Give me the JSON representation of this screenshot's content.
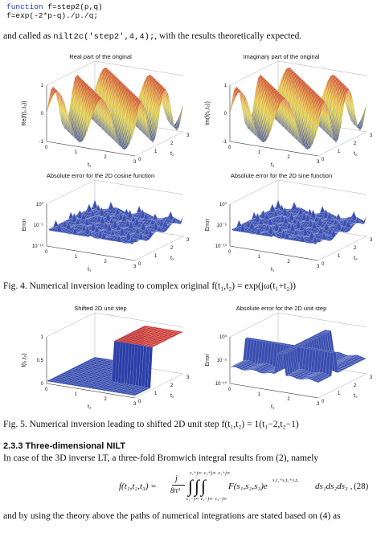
{
  "code": {
    "line1_keyword": "function",
    "line1_rest": " f=step2(p,q)",
    "line2": "f=exp(-2*p-q)./p./q;"
  },
  "intro": {
    "before": "and called as ",
    "call": "nilt2c('step2',4,4);",
    "after": ", with the results theoretically expected."
  },
  "fig4": {
    "plot_a": {
      "title": "Real part of the original",
      "zlabel": "Re(f(t₁,t₂))",
      "xlabel": "t₁",
      "ylabel": "t₂",
      "xticks": [
        "0",
        "1",
        "2",
        "3"
      ],
      "yticks": [
        "0",
        "1",
        "2",
        "3"
      ],
      "zticks": [
        "1",
        "0",
        "-1"
      ]
    },
    "plot_b": {
      "title": "Imaginary part of the original",
      "zlabel": "Im(f(t₁,t₂))",
      "xlabel": "t₁",
      "ylabel": "t₂",
      "xticks": [
        "0",
        "1",
        "2",
        "3"
      ],
      "yticks": [
        "0",
        "1",
        "2",
        "3"
      ],
      "zticks": [
        "1",
        "0",
        "-1"
      ]
    },
    "plot_c": {
      "title": "Absolute error for the 2D cosine function",
      "zlabel": "Error",
      "xlabel": "t₁",
      "ylabel": "t₂",
      "xticks": [
        "0",
        "1",
        "2",
        "3"
      ],
      "yticks": [
        "0",
        "1",
        "2",
        "3"
      ],
      "zticks": [
        "10⁰",
        "10⁻⁵",
        "10⁻¹⁰"
      ]
    },
    "plot_d": {
      "title": "Absolute error for the 2D sine function",
      "zlabel": "Error",
      "xlabel": "t₁",
      "ylabel": "t₂",
      "xticks": [
        "0",
        "1",
        "2",
        "3"
      ],
      "yticks": [
        "0",
        "1",
        "2",
        "3"
      ],
      "zticks": [
        "10⁰",
        "10⁻⁵",
        "10⁻¹⁰"
      ]
    },
    "caption": "Fig. 4. Numerical inversion leading to complex original f(t₁,t₂) = exp(jω(t₁+t₂))"
  },
  "fig5": {
    "plot_a": {
      "title": "Shifted 2D unit step",
      "zlabel": "f(t₁,t₂)",
      "xlabel": "t₁",
      "ylabel": "t₂",
      "xticks": [
        "0",
        "1",
        "2",
        "3"
      ],
      "yticks": [
        "0",
        "1",
        "2",
        "3"
      ],
      "zticks": [
        "1",
        "0.5",
        "0"
      ]
    },
    "plot_b": {
      "title": "Absolute error for the 2D unit step",
      "zlabel": "Error",
      "xlabel": "t₁",
      "ylabel": "t₂",
      "xticks": [
        "0",
        "1",
        "2",
        "3"
      ],
      "yticks": [
        "0",
        "1",
        "2",
        "3"
      ],
      "zticks": [
        "10⁰",
        "10⁻⁵",
        "10⁻¹⁰"
      ]
    },
    "caption": "Fig. 5. Numerical inversion leading to shifted 2D unit step f(t₁,t₂) = 1(t₁−2,t₂−1)"
  },
  "section": {
    "heading": "2.3.3 Three-dimensional NILT",
    "text": "In case of the 3D inverse LT, a three-fold Bromwich integral results from (2), namely"
  },
  "equation": {
    "lhs": "f(t₁,t₂,t₃) = ",
    "frac_num": "j",
    "frac_den": "8π³",
    "integrals": "∫∫∫",
    "upper_limits": "c₁+j∞  c₂+j∞  c₃+j∞",
    "lower_limits": "c₁−j∞  c₂−j∞  c₃−j∞",
    "integrand": "F(s₁,s₂,s₃)e",
    "exponent": "s₁t₁+s₂t₂+s₃t₃",
    "differentials": "ds₁ds₂ds₃ ,",
    "number": "(28)"
  },
  "closing": "and by using the theory above the paths of numerical integrations are stated based on (4) as",
  "colors": {
    "surface_high": "#c8302a",
    "surface_mid": "#e8d840",
    "surface_low": "#2a3fa8",
    "error_surface": "#3a4fb0"
  }
}
